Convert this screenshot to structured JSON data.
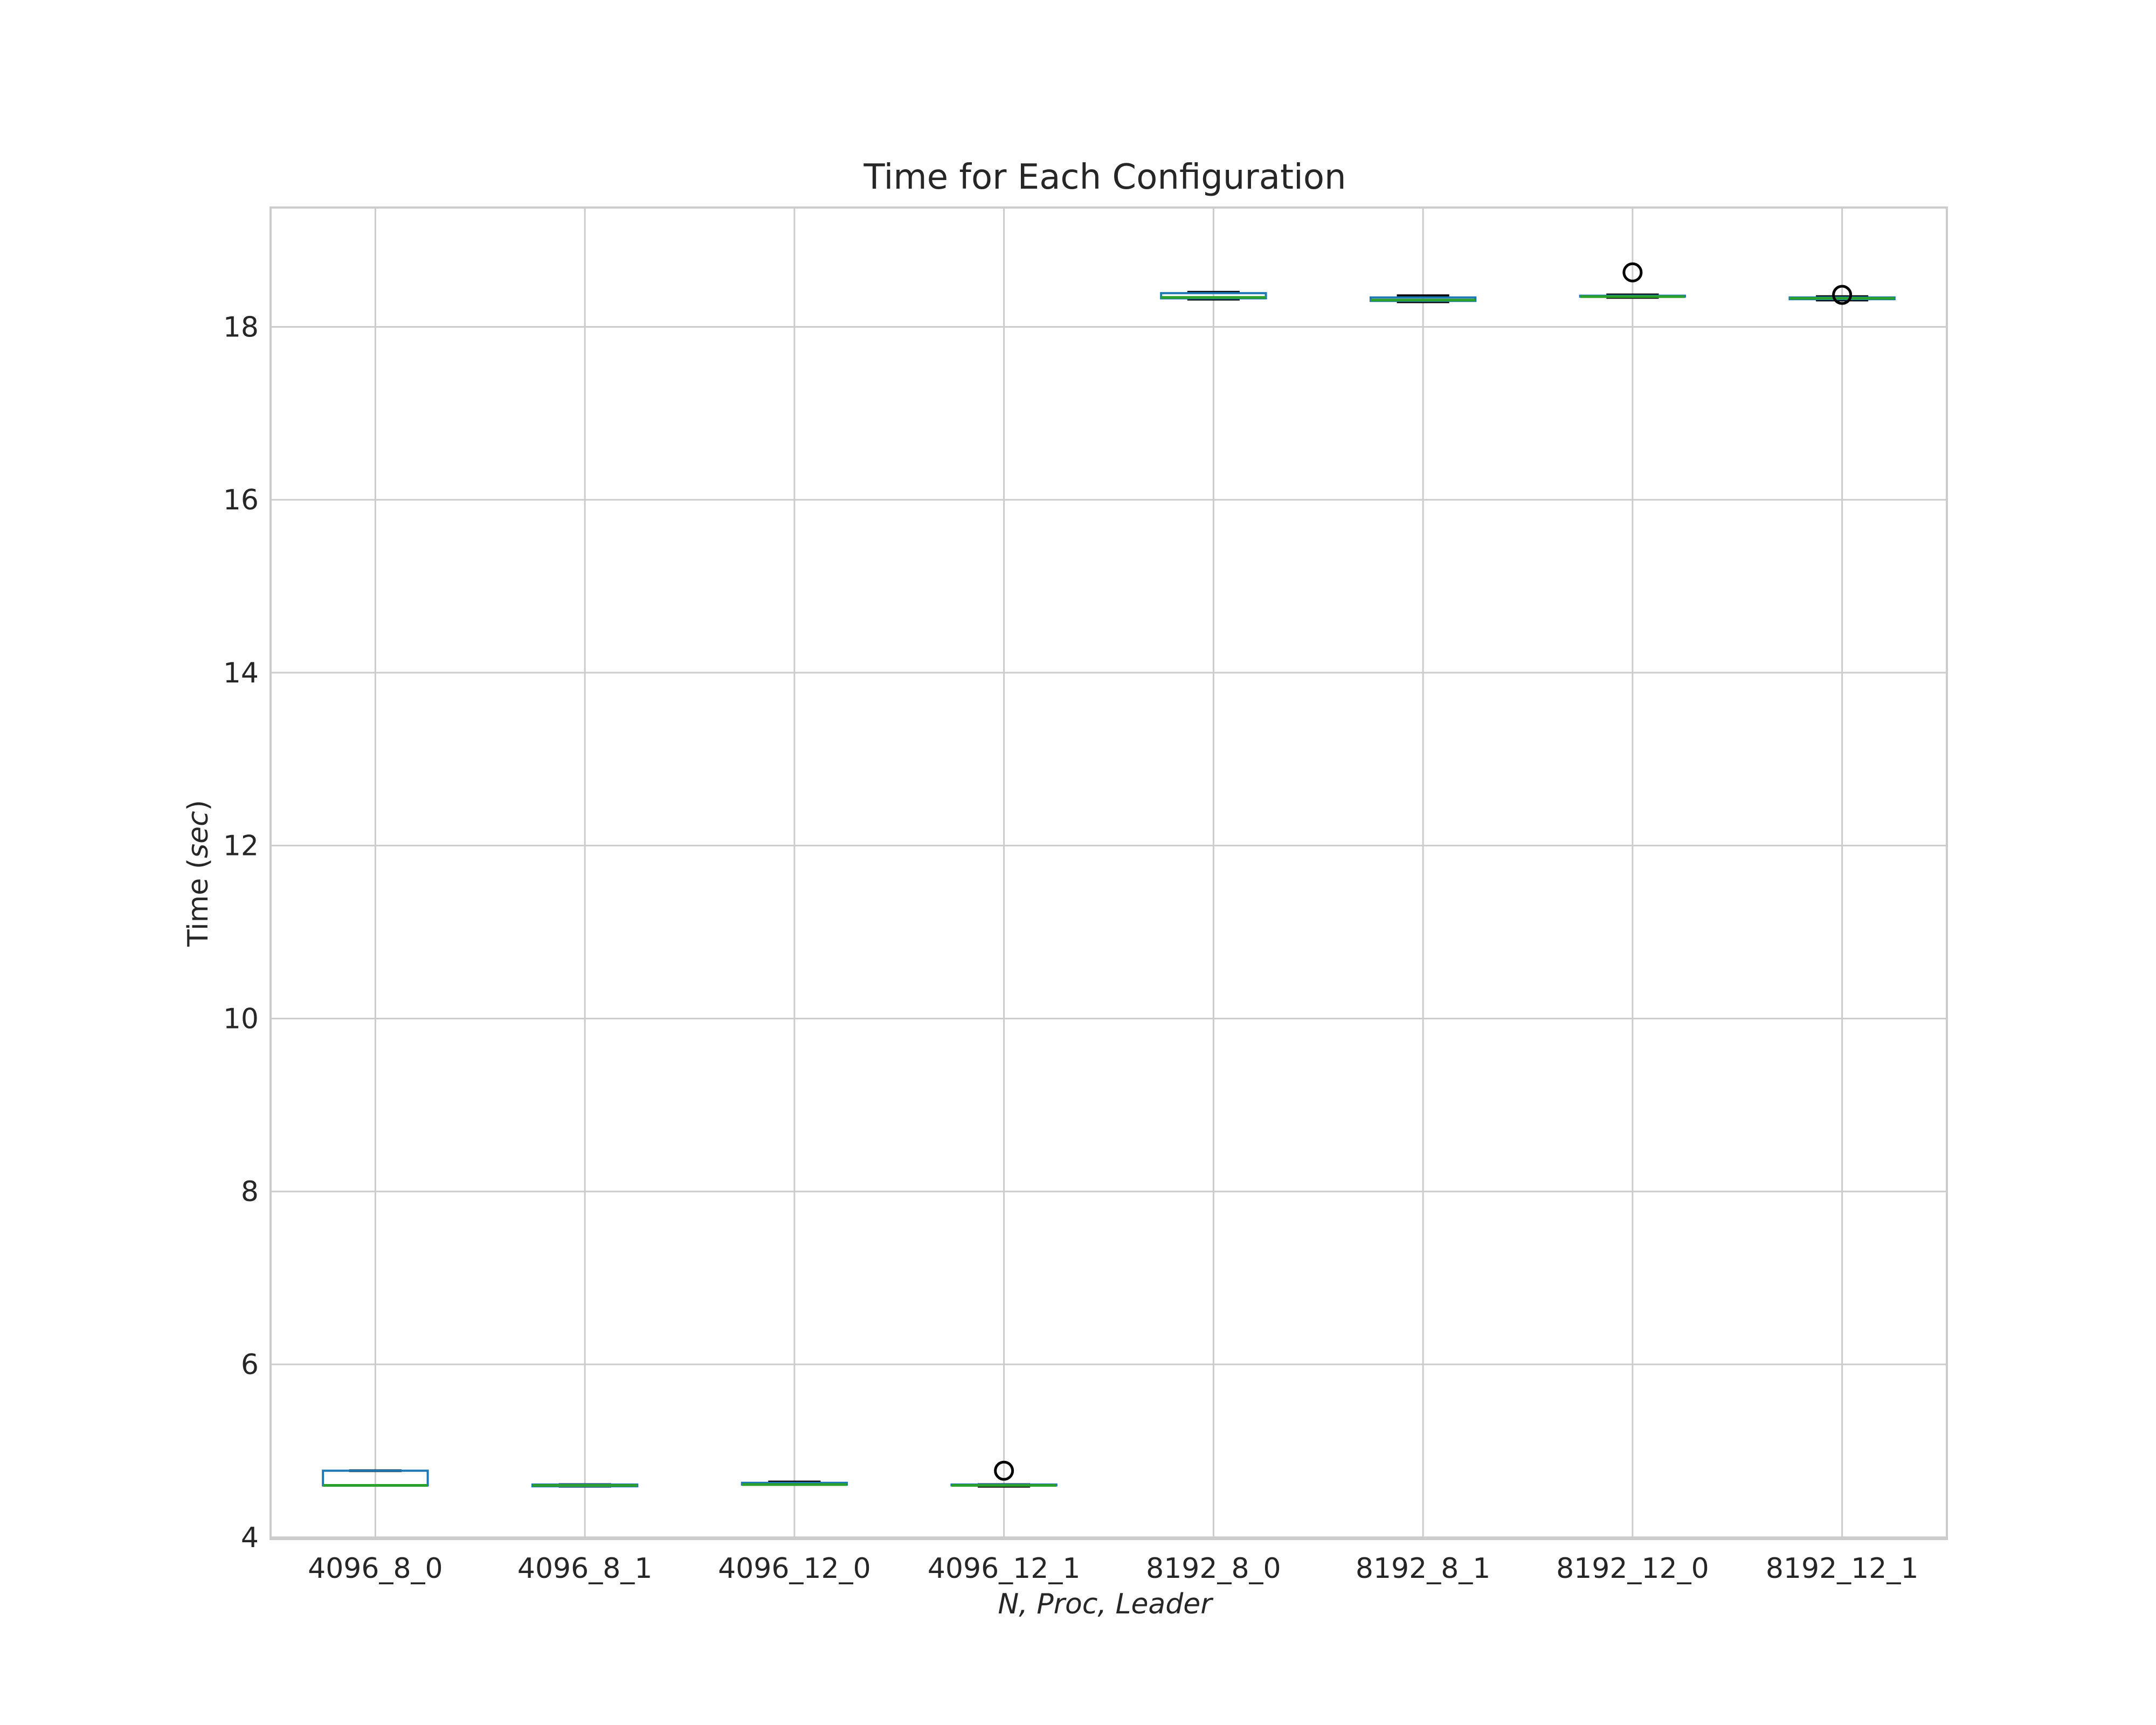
{
  "chart_data": {
    "type": "box",
    "title": "Time for Each Configuration",
    "xlabel_prefix": "",
    "xlabel": "N, Proc, Leader",
    "ylabel": "Time",
    "ylabel_unit": "sec",
    "ylim": [
      3.98,
      19.38
    ],
    "yticks": [
      4,
      6,
      8,
      10,
      12,
      14,
      16,
      18
    ],
    "grid": true,
    "colors": {
      "box": "#1f77b4",
      "median": "#2ca02c",
      "whisker": "#000000",
      "grid": "#cccccc",
      "frame": "#cccccc",
      "flier": "#000000"
    },
    "categories": [
      "4096_8_0",
      "4096_8_1",
      "4096_12_0",
      "4096_12_1",
      "8192_8_0",
      "8192_8_1",
      "8192_12_0",
      "8192_12_1"
    ],
    "boxes": [
      {
        "label": "4096_8_0",
        "whislo": 4.6,
        "q1": 4.6,
        "med": 4.6,
        "q3": 4.77,
        "whishi": 4.77,
        "fliers": []
      },
      {
        "label": "4096_8_1",
        "whislo": 4.59,
        "q1": 4.59,
        "med": 4.6,
        "q3": 4.61,
        "whishi": 4.61,
        "fliers": []
      },
      {
        "label": "4096_12_0",
        "whislo": 4.61,
        "q1": 4.61,
        "med": 4.61,
        "q3": 4.63,
        "whishi": 4.64,
        "fliers": []
      },
      {
        "label": "4096_12_1",
        "whislo": 4.59,
        "q1": 4.6,
        "med": 4.6,
        "q3": 4.61,
        "whishi": 4.61,
        "fliers": [
          4.77
        ]
      },
      {
        "label": "8192_8_0",
        "whislo": 18.32,
        "q1": 18.33,
        "med": 18.34,
        "q3": 18.39,
        "whishi": 18.4,
        "fliers": []
      },
      {
        "label": "8192_8_1",
        "whislo": 18.29,
        "q1": 18.3,
        "med": 18.31,
        "q3": 18.34,
        "whishi": 18.36,
        "fliers": []
      },
      {
        "label": "8192_12_0",
        "whislo": 18.34,
        "q1": 18.35,
        "med": 18.35,
        "q3": 18.36,
        "whishi": 18.37,
        "fliers": [
          18.63
        ]
      },
      {
        "label": "8192_12_1",
        "whislo": 18.31,
        "q1": 18.32,
        "med": 18.33,
        "q3": 18.34,
        "whishi": 18.35,
        "fliers": [
          18.37
        ]
      }
    ]
  }
}
